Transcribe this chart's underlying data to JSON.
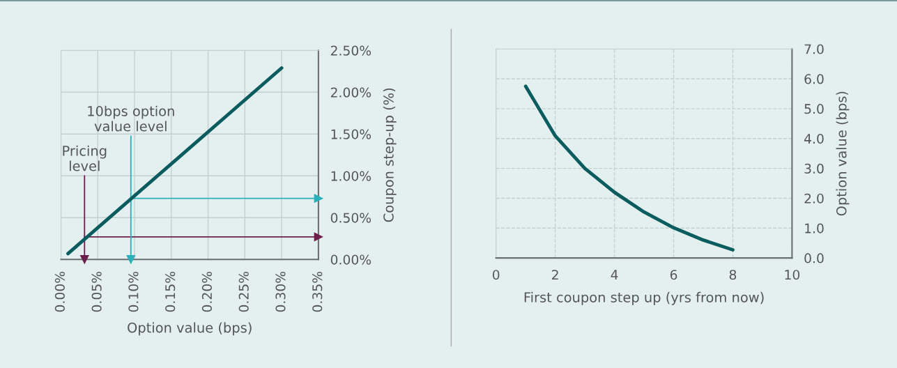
{
  "chart_data": [
    {
      "type": "line",
      "xlabel": "Option value (bps)",
      "ylabel": "Coupon step-up (%)",
      "series": [
        {
          "color": "#0b5c5e",
          "x": [
            0.0095,
            0.3
          ],
          "values": [
            0.07,
            2.29
          ]
        }
      ],
      "xlim": [
        0,
        0.35
      ],
      "xticks": [
        {
          "value": 0,
          "label": "0.00%"
        },
        {
          "value": 0.05,
          "label": "0.05%"
        },
        {
          "value": 0.1,
          "label": "0.10%"
        },
        {
          "value": 0.15,
          "label": "0.15%"
        },
        {
          "value": 0.2,
          "label": "0.20%"
        },
        {
          "value": 0.25,
          "label": "0.25%"
        },
        {
          "value": 0.3,
          "label": "0.30%"
        },
        {
          "value": 0.35,
          "label": "0.35%"
        }
      ],
      "ylim": [
        0,
        2.5
      ],
      "yticks": [
        {
          "value": 0,
          "label": "0.00%"
        },
        {
          "value": 0.5,
          "label": "0.50%"
        },
        {
          "value": 1.0,
          "label": "1.00%"
        },
        {
          "value": 1.5,
          "label": "1.50%"
        },
        {
          "value": 2.0,
          "label": "2.00%"
        },
        {
          "value": 2.5,
          "label": "2.50%"
        }
      ],
      "ref_lines": [
        {
          "axis": "x",
          "value": 0.032,
          "label": "Pricing\nlevel",
          "color": "#6b1f4a"
        },
        {
          "axis": "y",
          "value": 0.27,
          "color": "#6b1f4a"
        },
        {
          "axis": "x",
          "value": 0.095,
          "label": "10bps option\nvalue level",
          "color": "#2ab0b8"
        },
        {
          "axis": "y",
          "value": 0.73,
          "color": "#2ab0b8"
        }
      ],
      "grid": true
    },
    {
      "type": "line",
      "xlabel": "First coupon step up (yrs from now)",
      "ylabel": "Option value (bps)",
      "series": [
        {
          "color": "#0b5c5e",
          "x": [
            1,
            2,
            3,
            4,
            5,
            6,
            7,
            8
          ],
          "values": [
            5.75,
            4.09,
            3.0,
            2.2,
            1.54,
            1.01,
            0.6,
            0.27
          ]
        }
      ],
      "xlim": [
        0,
        10
      ],
      "xticks": [
        0,
        2,
        4,
        6,
        8,
        10
      ],
      "ylim": [
        0,
        7
      ],
      "yticks": [
        {
          "value": 0,
          "label": "0.0"
        },
        {
          "value": 1,
          "label": "1.0"
        },
        {
          "value": 2,
          "label": "2.0"
        },
        {
          "value": 3,
          "label": "3.0"
        },
        {
          "value": 4,
          "label": "4.0"
        },
        {
          "value": 5,
          "label": "5.0"
        },
        {
          "value": 6,
          "label": "6.0"
        },
        {
          "value": 7,
          "label": "7.0"
        }
      ],
      "grid": true
    }
  ]
}
